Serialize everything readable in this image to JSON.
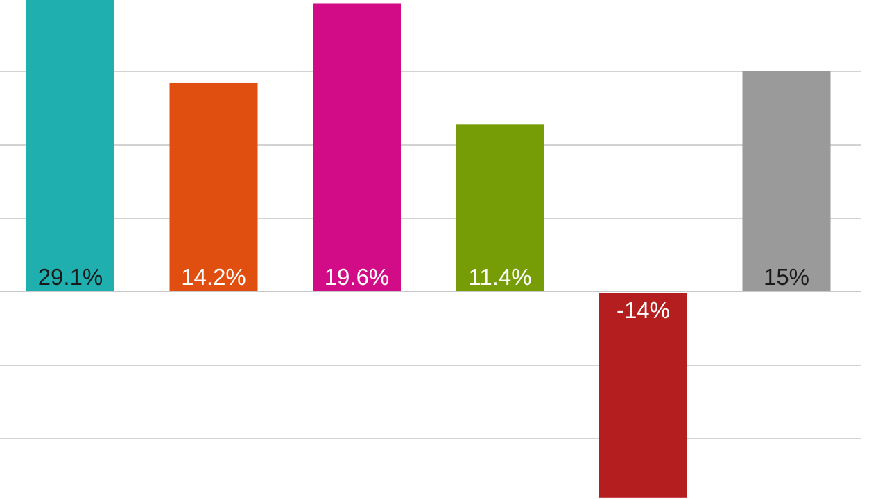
{
  "chart_data": {
    "type": "bar",
    "categories": [
      "",
      "",
      "",
      "",
      "",
      ""
    ],
    "values": [
      29.1,
      14.2,
      19.6,
      11.4,
      -14,
      15
    ],
    "data_labels": [
      "29.1%",
      "14.2%",
      "19.6%",
      "11.4%",
      "-14%",
      "15%"
    ],
    "colors": [
      "#20afaf",
      "#e04e10",
      "#d20c87",
      "#769d06",
      "#b41e1e",
      "#9a9a9a"
    ],
    "label_colors": [
      "#1a1a1a",
      "#ffffff",
      "#ffffff",
      "#ffffff",
      "#ffffff",
      "#1a1a1a"
    ],
    "title": "",
    "xlabel": "",
    "ylabel": "",
    "ylim": [
      -14,
      20
    ],
    "gridlines": [
      -10,
      -5,
      0,
      5,
      10,
      15,
      20
    ],
    "grid": true,
    "legend": "none"
  }
}
